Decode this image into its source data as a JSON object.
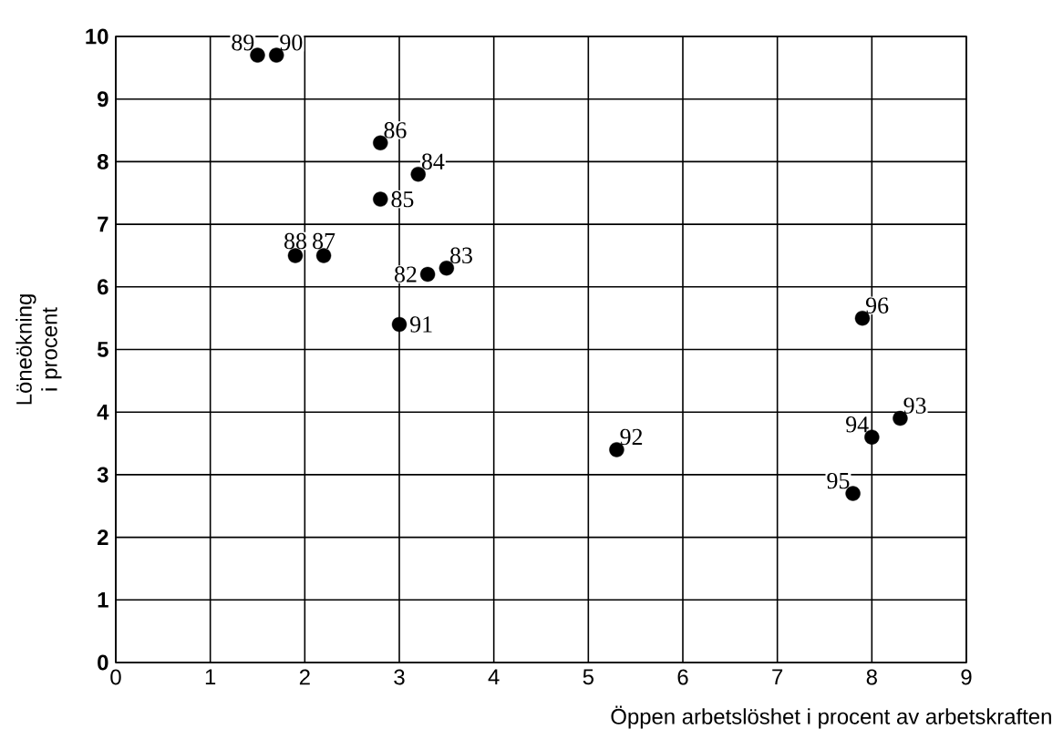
{
  "chart_data": {
    "type": "scatter",
    "xlabel": "Öppen arbetslöshet i procent av arbetskraften",
    "ylabel": "Löneökning i procent",
    "x": [
      1.5,
      1.7,
      2.8,
      3.2,
      2.8,
      1.9,
      2.2,
      3.3,
      3.5,
      3.0,
      5.3,
      7.9,
      8.0,
      8.3,
      7.8
    ],
    "values": [
      9.7,
      9.7,
      8.3,
      7.8,
      7.4,
      6.5,
      6.5,
      6.2,
      6.3,
      5.4,
      3.4,
      5.5,
      3.6,
      3.9,
      2.7
    ],
    "color": "#000000",
    "marker": "circle",
    "grid": true,
    "xlim": [
      0,
      9
    ],
    "xticks": [
      0,
      1,
      2,
      3,
      4,
      5,
      6,
      7,
      8,
      9
    ],
    "ylim": [
      0,
      10
    ],
    "yticks": [
      0,
      1,
      2,
      3,
      4,
      5,
      6,
      7,
      8,
      9,
      10
    ],
    "annotations": [
      {
        "text": "89",
        "x": 1.5,
        "y": 9.7
      },
      {
        "text": "90",
        "x": 1.7,
        "y": 9.7
      },
      {
        "text": "86",
        "x": 2.8,
        "y": 8.3
      },
      {
        "text": "84",
        "x": 3.2,
        "y": 7.8
      },
      {
        "text": "85",
        "x": 2.8,
        "y": 7.4
      },
      {
        "text": "88",
        "x": 1.9,
        "y": 6.5
      },
      {
        "text": "87",
        "x": 2.2,
        "y": 6.5
      },
      {
        "text": "82",
        "x": 3.3,
        "y": 6.2
      },
      {
        "text": "83",
        "x": 3.5,
        "y": 6.3
      },
      {
        "text": "91",
        "x": 3.0,
        "y": 5.4
      },
      {
        "text": "92",
        "x": 5.3,
        "y": 3.4
      },
      {
        "text": "96",
        "x": 7.9,
        "y": 5.5
      },
      {
        "text": "94",
        "x": 8.0,
        "y": 3.6
      },
      {
        "text": "93",
        "x": 8.3,
        "y": 3.9
      },
      {
        "text": "95",
        "x": 7.8,
        "y": 2.7
      }
    ]
  }
}
